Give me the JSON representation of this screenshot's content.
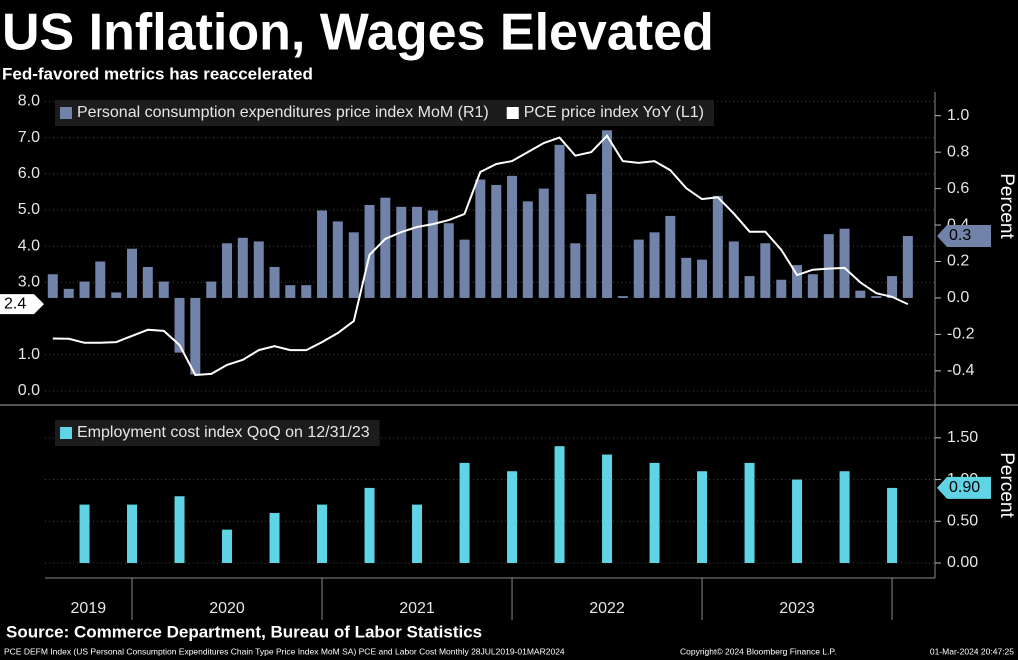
{
  "title": "US Inflation, Wages Elevated",
  "subtitle": "Fed-favored metrics has reaccelerated",
  "source": "Source: Commerce Department, Bureau of Labor Statistics",
  "footer": [
    "PCE DEFM Index (US Personal Consumption Expenditures Chain Type Price Index MoM SA) PCE and Labor Cost  Monthly 28JUL2019-01MAR2024",
    "Copyright© 2024 Bloomberg Finance L.P.",
    "01-Mar-2024 20:47:25"
  ],
  "chart_data": [
    {
      "type": "bar",
      "x": [
        2019.583,
        2019.667,
        2019.75,
        2019.833,
        2019.917,
        2020.0,
        2020.083,
        2020.167,
        2020.25,
        2020.333,
        2020.417,
        2020.5,
        2020.583,
        2020.667,
        2020.75,
        2020.833,
        2020.917,
        2021.0,
        2021.083,
        2021.167,
        2021.25,
        2021.333,
        2021.417,
        2021.5,
        2021.583,
        2021.667,
        2021.75,
        2021.833,
        2021.917,
        2022.0,
        2022.083,
        2022.167,
        2022.25,
        2022.333,
        2022.417,
        2022.5,
        2022.583,
        2022.667,
        2022.75,
        2022.833,
        2022.917,
        2023.0,
        2023.083,
        2023.167,
        2023.25,
        2023.333,
        2023.417,
        2023.5,
        2023.583,
        2023.667,
        2023.75,
        2023.833,
        2023.917,
        2024.0,
        2024.083
      ],
      "series": [
        {
          "name": "Personal consumption expenditures price index MoM (R1)",
          "type": "bar",
          "axis": "y2",
          "color": "#7283a9",
          "values": [
            0.13,
            0.05,
            0.09,
            0.2,
            0.03,
            0.27,
            0.17,
            0.09,
            -0.3,
            -0.42,
            0.09,
            0.3,
            0.33,
            0.31,
            0.17,
            0.07,
            0.07,
            0.48,
            0.42,
            0.36,
            0.51,
            0.55,
            0.5,
            0.5,
            0.48,
            0.41,
            0.32,
            0.65,
            0.62,
            0.67,
            0.53,
            0.6,
            0.84,
            0.3,
            0.57,
            0.92,
            0.01,
            0.32,
            0.36,
            0.45,
            0.22,
            0.21,
            0.56,
            0.31,
            0.12,
            0.3,
            0.1,
            0.18,
            0.13,
            0.35,
            0.38,
            0.04,
            0.01,
            0.12,
            0.34
          ],
          "last_label": "0.3"
        },
        {
          "name": "PCE price index YoY (L1)",
          "type": "line",
          "axis": "y",
          "color": "#ffffff",
          "values": [
            1.45,
            1.44,
            1.33,
            1.33,
            1.35,
            1.52,
            1.69,
            1.66,
            1.27,
            0.44,
            0.47,
            0.72,
            0.86,
            1.13,
            1.24,
            1.13,
            1.13,
            1.35,
            1.6,
            1.93,
            3.76,
            4.2,
            4.39,
            4.53,
            4.61,
            4.72,
            4.89,
            6.05,
            6.27,
            6.35,
            6.6,
            6.85,
            7.0,
            6.5,
            6.6,
            7.05,
            6.35,
            6.3,
            6.35,
            6.1,
            5.6,
            5.3,
            5.35,
            4.9,
            4.4,
            4.4,
            3.9,
            3.2,
            3.35,
            3.38,
            3.4,
            3.0,
            2.7,
            2.6,
            2.4
          ],
          "last_label": "2.4"
        }
      ],
      "ylim": [
        -0.25,
        8.26
      ],
      "yticks": [
        {
          "value": 0,
          "label": "0.0"
        },
        {
          "value": 1,
          "label": "1.0"
        },
        {
          "value": 3,
          "label": "3.0"
        },
        {
          "value": 4,
          "label": "4.0"
        },
        {
          "value": 5,
          "label": "5.0"
        },
        {
          "value": 6,
          "label": "6.0"
        },
        {
          "value": 7,
          "label": "7.0"
        },
        {
          "value": 8,
          "label": "8.0"
        }
      ],
      "y2lim": [
        -0.56,
        1.13
      ],
      "y2ticks": [
        {
          "value": -0.4,
          "label": "-0.4"
        },
        {
          "value": -0.2,
          "label": "-0.2"
        },
        {
          "value": 0,
          "label": "0.0"
        },
        {
          "value": 0.2,
          "label": "0.2"
        },
        {
          "value": 0.4,
          "label": "0.4"
        },
        {
          "value": 0.6,
          "label": "0.6"
        },
        {
          "value": 0.8,
          "label": "0.8"
        },
        {
          "value": 1,
          "label": "1.0"
        }
      ],
      "y2label": "Percent",
      "xlim": [
        2019.542,
        2024.226
      ],
      "grid": true
    },
    {
      "type": "bar",
      "x": [
        2019.75,
        2020.0,
        2020.25,
        2020.5,
        2020.75,
        2021.0,
        2021.25,
        2021.5,
        2021.75,
        2022.0,
        2022.25,
        2022.5,
        2022.75,
        2023.0,
        2023.25,
        2023.5,
        2023.75,
        2024.0
      ],
      "series": [
        {
          "name": "Employment cost index QoQ on 12/31/23",
          "type": "bar",
          "axis": "y2",
          "color": "#5fd4e4",
          "values": [
            0.7,
            0.7,
            0.8,
            0.4,
            0.6,
            0.7,
            0.9,
            0.7,
            1.2,
            1.1,
            1.4,
            1.3,
            1.2,
            1.1,
            1.2,
            1.0,
            1.1,
            0.9
          ],
          "last_label": "0.90"
        }
      ],
      "y2lim": [
        -0.18,
        1.81
      ],
      "y2ticks": [
        {
          "value": 0,
          "label": "0.00"
        },
        {
          "value": 0.5,
          "label": "0.50"
        },
        {
          "value": 1,
          "label": "1.00"
        },
        {
          "value": 1.5,
          "label": "1.50"
        }
      ],
      "y2label": "Percent",
      "xlim": [
        2019.542,
        2024.226
      ],
      "xticks": [
        {
          "value": 2019.77,
          "label": "2019"
        },
        {
          "value": 2020.5,
          "label": "2020"
        },
        {
          "value": 2021.5,
          "label": "2021"
        },
        {
          "value": 2022.5,
          "label": "2022"
        },
        {
          "value": 2023.5,
          "label": "2023"
        }
      ],
      "xgrid": [
        2020,
        2021,
        2022,
        2023,
        2024
      ]
    }
  ]
}
